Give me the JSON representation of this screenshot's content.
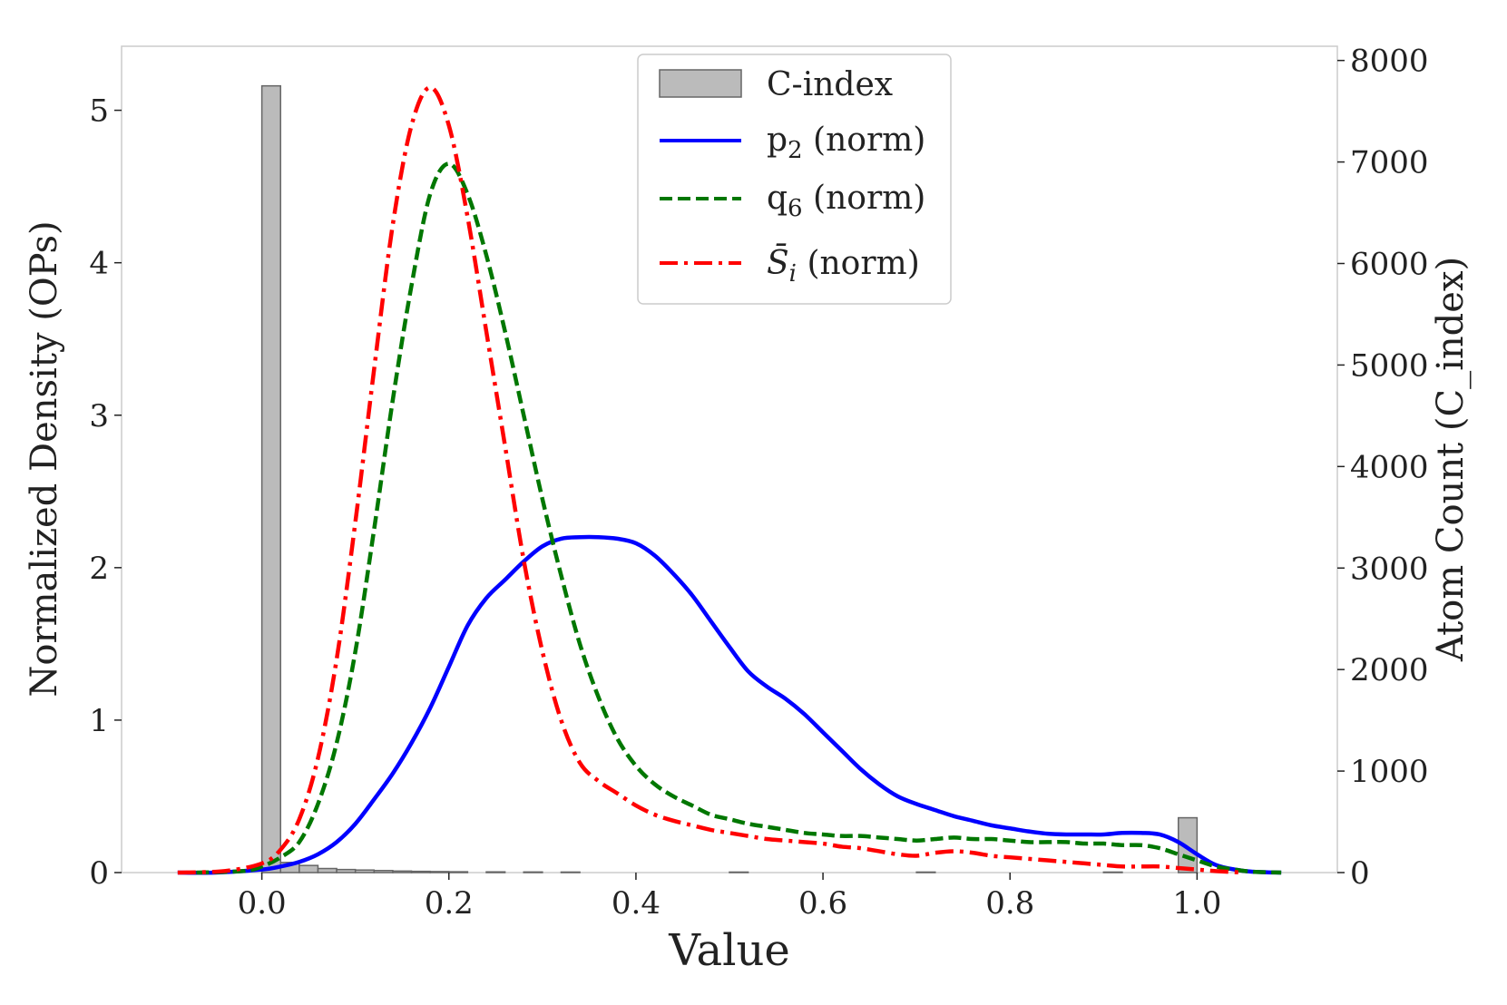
{
  "chart_data": {
    "type": "histogram+kde",
    "xlabel": "Value",
    "ylabel_left": "Normalized Density (OPs)",
    "ylabel_right": "Atom Count (C_index)",
    "xlim": [
      -0.15,
      1.15
    ],
    "ylim_left": [
      0,
      5.42
    ],
    "ylim_right": [
      0,
      8140
    ],
    "xticks": [
      "0.0",
      "0.2",
      "0.4",
      "0.6",
      "0.8",
      "1.0"
    ],
    "xtick_values": [
      0.0,
      0.2,
      0.4,
      0.6,
      0.8,
      1.0
    ],
    "yticks_left": [
      "0",
      "1",
      "2",
      "3",
      "4",
      "5"
    ],
    "ytick_left_values": [
      0,
      1,
      2,
      3,
      4,
      5
    ],
    "yticks_right": [
      "0",
      "1000",
      "2000",
      "3000",
      "4000",
      "5000",
      "6000",
      "7000",
      "8000"
    ],
    "ytick_right_values": [
      0,
      1000,
      2000,
      3000,
      4000,
      5000,
      6000,
      7000,
      8000
    ],
    "grid": false,
    "legend_position": "top-center",
    "histogram": {
      "name": "C-index",
      "color": "#bbbbbb",
      "edge_color": "#666666",
      "bin_width": 0.02,
      "bins": [
        {
          "x0": 0.0,
          "count": 7750
        },
        {
          "x0": 0.02,
          "count": 100
        },
        {
          "x0": 0.04,
          "count": 70
        },
        {
          "x0": 0.06,
          "count": 40
        },
        {
          "x0": 0.08,
          "count": 30
        },
        {
          "x0": 0.1,
          "count": 25
        },
        {
          "x0": 0.12,
          "count": 20
        },
        {
          "x0": 0.14,
          "count": 15
        },
        {
          "x0": 0.16,
          "count": 12
        },
        {
          "x0": 0.18,
          "count": 10
        },
        {
          "x0": 0.2,
          "count": 8
        },
        {
          "x0": 0.24,
          "count": 7
        },
        {
          "x0": 0.28,
          "count": 6
        },
        {
          "x0": 0.32,
          "count": 5
        },
        {
          "x0": 0.5,
          "count": 5
        },
        {
          "x0": 0.7,
          "count": 5
        },
        {
          "x0": 0.9,
          "count": 5
        },
        {
          "x0": 0.98,
          "count": 540
        }
      ]
    },
    "series": [
      {
        "name": "p2 (norm)",
        "color": "#0000ff",
        "style": "solid",
        "x": [
          -0.09,
          -0.05,
          0.0,
          0.02,
          0.04,
          0.06,
          0.08,
          0.1,
          0.12,
          0.14,
          0.16,
          0.18,
          0.2,
          0.22,
          0.24,
          0.26,
          0.28,
          0.3,
          0.32,
          0.34,
          0.36,
          0.38,
          0.4,
          0.42,
          0.44,
          0.46,
          0.48,
          0.5,
          0.52,
          0.54,
          0.56,
          0.58,
          0.6,
          0.62,
          0.64,
          0.66,
          0.68,
          0.7,
          0.72,
          0.74,
          0.76,
          0.78,
          0.8,
          0.82,
          0.84,
          0.86,
          0.88,
          0.9,
          0.92,
          0.94,
          0.96,
          0.98,
          1.0,
          1.02,
          1.04,
          1.06,
          1.09
        ],
        "y": [
          0.0,
          0.0,
          0.02,
          0.04,
          0.07,
          0.12,
          0.2,
          0.32,
          0.48,
          0.65,
          0.85,
          1.08,
          1.35,
          1.62,
          1.8,
          1.92,
          2.04,
          2.14,
          2.19,
          2.2,
          2.2,
          2.19,
          2.16,
          2.08,
          1.96,
          1.82,
          1.65,
          1.48,
          1.32,
          1.22,
          1.14,
          1.04,
          0.92,
          0.8,
          0.68,
          0.58,
          0.5,
          0.45,
          0.41,
          0.37,
          0.34,
          0.31,
          0.29,
          0.27,
          0.255,
          0.25,
          0.25,
          0.25,
          0.26,
          0.26,
          0.25,
          0.2,
          0.12,
          0.05,
          0.02,
          0.005,
          0.0
        ]
      },
      {
        "name": "q6 (norm)",
        "color": "#007700",
        "style": "dashed",
        "x": [
          -0.07,
          -0.02,
          0.0,
          0.02,
          0.04,
          0.06,
          0.08,
          0.1,
          0.12,
          0.14,
          0.16,
          0.18,
          0.2,
          0.22,
          0.24,
          0.26,
          0.28,
          0.3,
          0.32,
          0.34,
          0.36,
          0.38,
          0.4,
          0.42,
          0.44,
          0.46,
          0.48,
          0.5,
          0.52,
          0.54,
          0.56,
          0.58,
          0.6,
          0.62,
          0.64,
          0.66,
          0.68,
          0.7,
          0.72,
          0.74,
          0.76,
          0.78,
          0.8,
          0.82,
          0.84,
          0.86,
          0.88,
          0.9,
          0.92,
          0.94,
          0.96,
          0.98,
          1.0,
          1.02,
          1.04,
          1.06,
          1.09
        ],
        "y": [
          0.0,
          0.01,
          0.04,
          0.1,
          0.2,
          0.45,
          0.85,
          1.45,
          2.25,
          3.1,
          3.85,
          4.45,
          4.65,
          4.45,
          4.05,
          3.55,
          3.0,
          2.45,
          1.95,
          1.5,
          1.15,
          0.88,
          0.7,
          0.58,
          0.5,
          0.44,
          0.38,
          0.35,
          0.32,
          0.3,
          0.28,
          0.26,
          0.25,
          0.24,
          0.24,
          0.23,
          0.22,
          0.21,
          0.22,
          0.23,
          0.22,
          0.22,
          0.21,
          0.2,
          0.2,
          0.2,
          0.19,
          0.19,
          0.18,
          0.18,
          0.16,
          0.12,
          0.08,
          0.04,
          0.02,
          0.005,
          0.0
        ]
      },
      {
        "name": "S̄i (norm)",
        "color": "#ff0000",
        "style": "dashdot",
        "x": [
          -0.09,
          -0.04,
          0.0,
          0.02,
          0.04,
          0.06,
          0.08,
          0.1,
          0.12,
          0.14,
          0.16,
          0.18,
          0.2,
          0.22,
          0.24,
          0.26,
          0.28,
          0.3,
          0.32,
          0.34,
          0.36,
          0.38,
          0.4,
          0.42,
          0.44,
          0.46,
          0.48,
          0.5,
          0.52,
          0.54,
          0.56,
          0.58,
          0.6,
          0.62,
          0.64,
          0.66,
          0.68,
          0.7,
          0.72,
          0.74,
          0.76,
          0.78,
          0.8,
          0.82,
          0.84,
          0.86,
          0.88,
          0.9,
          0.92,
          0.94,
          0.96,
          0.98,
          1.0,
          1.02,
          1.05
        ],
        "y": [
          0.0,
          0.01,
          0.06,
          0.15,
          0.35,
          0.75,
          1.4,
          2.3,
          3.3,
          4.25,
          4.9,
          5.15,
          4.9,
          4.3,
          3.55,
          2.8,
          2.05,
          1.45,
          1.0,
          0.72,
          0.6,
          0.52,
          0.44,
          0.38,
          0.34,
          0.31,
          0.28,
          0.26,
          0.24,
          0.22,
          0.21,
          0.2,
          0.19,
          0.17,
          0.16,
          0.14,
          0.12,
          0.11,
          0.13,
          0.14,
          0.13,
          0.11,
          0.1,
          0.09,
          0.08,
          0.07,
          0.06,
          0.05,
          0.04,
          0.04,
          0.04,
          0.03,
          0.02,
          0.01,
          0.0
        ]
      }
    ],
    "legend": [
      {
        "label": "C-index",
        "kind": "patch"
      },
      {
        "label_main": "p",
        "label_sub": "2",
        "label_rest": " (norm)",
        "kind": "solid"
      },
      {
        "label_main": "q",
        "label_sub": "6",
        "label_rest": " (norm)",
        "kind": "dashed"
      },
      {
        "label_main": "S̄",
        "label_sub": "i",
        "label_rest": " (norm)",
        "kind": "dashdot"
      }
    ]
  }
}
